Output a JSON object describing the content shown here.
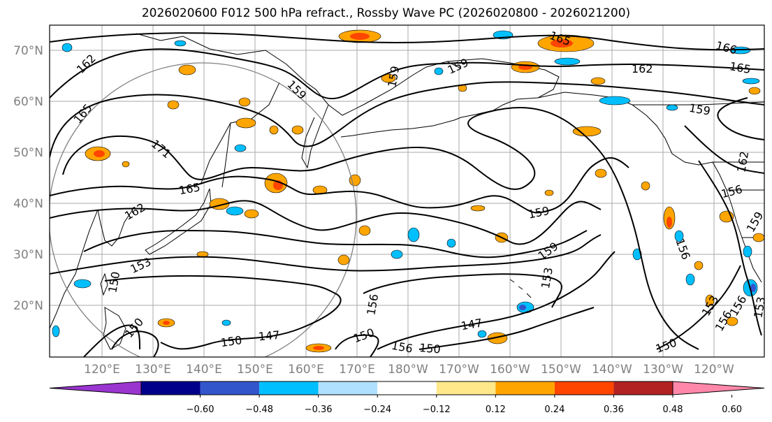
{
  "title": "2026020600 F012 500 hPa refract., Rossby Wave PC (2026020800 - 2026021200)",
  "map": {
    "projection": "lat-lon",
    "lon_range": [
      "112E",
      "112W"
    ],
    "lat_range": [
      "10N",
      "75N"
    ],
    "lat_labels": [
      "70°N",
      "60°N",
      "50°N",
      "40°N",
      "30°N",
      "20°N"
    ],
    "lon_labels": [
      "120°E",
      "130°E",
      "140°E",
      "150°E",
      "160°E",
      "170°E",
      "180°W",
      "170°W",
      "160°W",
      "150°W",
      "140°W",
      "130°W",
      "120°W"
    ],
    "gridlines": true,
    "contour_labels": [
      "162",
      "165",
      "165",
      "166",
      "162",
      "159",
      "159",
      "159",
      "171",
      "165",
      "162",
      "159",
      "159",
      "156",
      "153",
      "153",
      "156",
      "150",
      "147",
      "147",
      "150",
      "156",
      "150",
      "156",
      "153",
      "156",
      "150",
      "159",
      "162",
      "159",
      "156",
      "153",
      "150",
      "150",
      "165"
    ]
  },
  "colorbar": {
    "ticks": [
      "−0.60",
      "−0.48",
      "−0.36",
      "−0.24",
      "−0.12",
      "0.12",
      "0.24",
      "0.36",
      "0.48",
      "0.60"
    ],
    "colors": [
      "#9a35d0",
      "#00008b",
      "#3355cc",
      "#00bfff",
      "#b0e0ff",
      "#ffffff",
      "#ffe88a",
      "#ffa500",
      "#ff4500",
      "#b22222",
      "#ff88aa"
    ],
    "extend": "both"
  }
}
